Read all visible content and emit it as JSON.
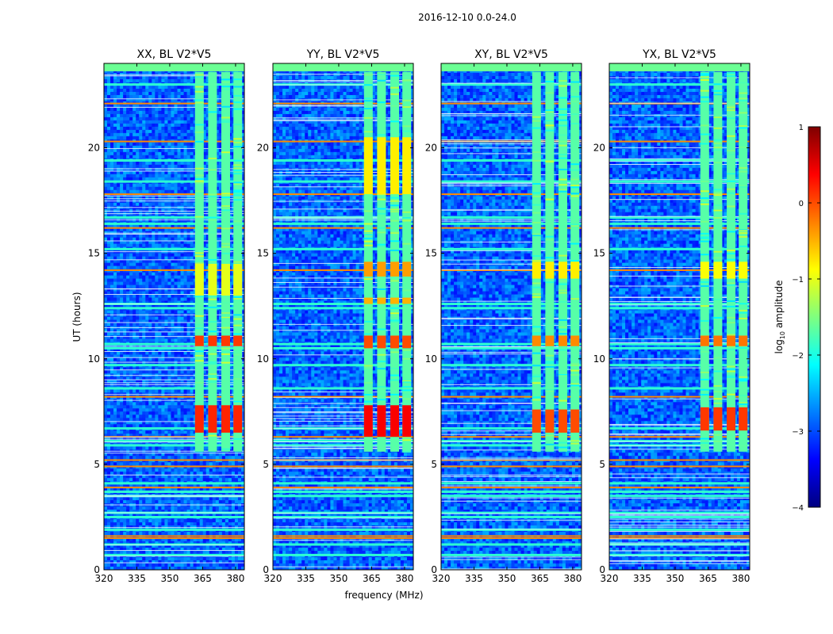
{
  "chart_data": {
    "type": "heatmap",
    "suptitle": "2016-12-10 0.0-24.0",
    "xlabel": "frequency (MHz)",
    "ylabel": "UT (hours)",
    "xlim": [
      320,
      384
    ],
    "ylim": [
      0,
      24
    ],
    "xticks": [
      320,
      335,
      350,
      365,
      380
    ],
    "yticks": [
      0,
      5,
      10,
      15,
      20
    ],
    "colorbar": {
      "label_prefix": "log",
      "label_sub": "10",
      "label_suffix": " amplitude",
      "range": [
        -4,
        1
      ],
      "ticks": [
        "1",
        "0",
        "−1",
        "−2",
        "−3",
        "−4"
      ],
      "tick_values": [
        1,
        0,
        -1,
        -2,
        -3,
        -4
      ],
      "colormap": "jet",
      "colors": [
        "#00007f",
        "#0000ff",
        "#007fff",
        "#00ffff",
        "#7fff7f",
        "#ffff00",
        "#ff7f00",
        "#ff0000",
        "#7f0000"
      ]
    },
    "band_channels_mhz": [
      363.5,
      369.5,
      375.5,
      381.0
    ],
    "band_hours": [
      5.6,
      23.6
    ],
    "panels": [
      {
        "title": "XX, BL V2*V5",
        "events": [
          {
            "t_start": 6.5,
            "t_end": 7.8,
            "level": 0.2
          },
          {
            "t_start": 10.6,
            "t_end": 11.1,
            "level": 0.1
          },
          {
            "t_start": 13.0,
            "t_end": 14.5,
            "level": -1.0
          }
        ]
      },
      {
        "title": "YY, BL V2*V5",
        "events": [
          {
            "t_start": 6.3,
            "t_end": 7.8,
            "level": 0.4
          },
          {
            "t_start": 10.5,
            "t_end": 11.1,
            "level": 0.0
          },
          {
            "t_start": 12.6,
            "t_end": 12.9,
            "level": -0.5
          },
          {
            "t_start": 13.9,
            "t_end": 14.6,
            "level": -0.4
          },
          {
            "t_start": 17.8,
            "t_end": 20.5,
            "level": -0.8
          }
        ]
      },
      {
        "title": "XY, BL V2*V5",
        "events": [
          {
            "t_start": 6.5,
            "t_end": 7.6,
            "level": 0.0
          },
          {
            "t_start": 10.6,
            "t_end": 11.1,
            "level": -0.3
          },
          {
            "t_start": 13.8,
            "t_end": 14.6,
            "level": -0.8
          }
        ]
      },
      {
        "title": "YX, BL V2*V5",
        "events": [
          {
            "t_start": 6.6,
            "t_end": 7.7,
            "level": 0.1
          },
          {
            "t_start": 10.6,
            "t_end": 11.1,
            "level": -0.2
          },
          {
            "t_start": 13.8,
            "t_end": 14.6,
            "level": -0.9
          }
        ]
      }
    ],
    "strong_rfi_hours": [
      1.5,
      1.6,
      3.9,
      4.9,
      5.2,
      6.3,
      8.2,
      14.2,
      16.2,
      17.8,
      20.3,
      22.1
    ],
    "moderate_rfi_hours": [
      0.7,
      1.2,
      1.9,
      2.5,
      2.7,
      3.5,
      3.7,
      4.1,
      5.9,
      6.1,
      6.7,
      8.6,
      9.7,
      10.5,
      10.7,
      12.4,
      12.6,
      15.2,
      16.4,
      16.7,
      18.4,
      19.4,
      23.0
    ]
  }
}
